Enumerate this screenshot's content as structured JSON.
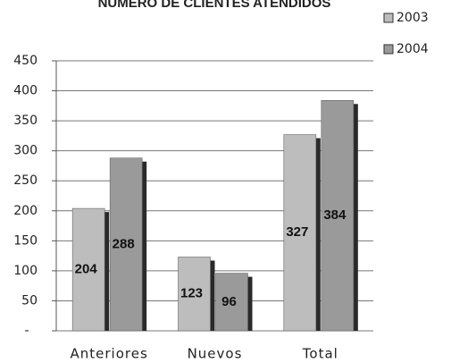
{
  "chart_data": {
    "type": "bar",
    "title": "NUMERO DE CLIENTES ATENDIDOS",
    "categories": [
      "Anteriores",
      "Nuevos",
      "Total"
    ],
    "series": [
      {
        "name": "2003",
        "color": "#bdbdbd",
        "values": [
          204,
          123,
          327
        ]
      },
      {
        "name": "2004",
        "color": "#9a9a9a",
        "values": [
          288,
          96,
          384
        ]
      }
    ],
    "ylim": [
      0,
      450
    ],
    "yticks": [
      {
        "value": 0,
        "label": "-"
      },
      50,
      100,
      150,
      200,
      250,
      300,
      350,
      400,
      450
    ],
    "grid": true,
    "legend": "top-right"
  }
}
